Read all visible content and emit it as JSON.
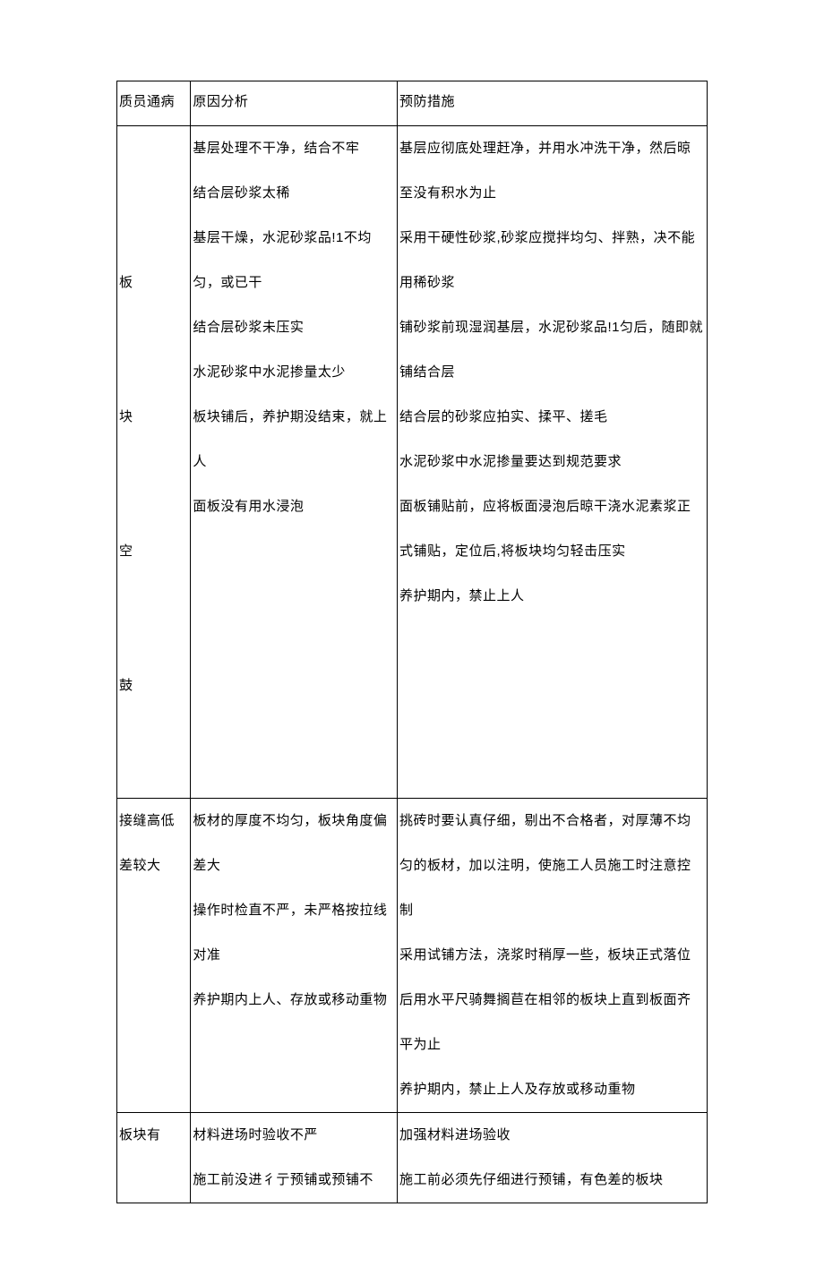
{
  "table": {
    "header": {
      "col1": "质员通病",
      "col2": "原因分析",
      "col3": "预防措施"
    },
    "rows": [
      {
        "col1_lines": [
          "板",
          "块",
          "空",
          "鼓"
        ],
        "col2": "基层处理不干净，结合不牢\n结合层砂浆太稀\n基层干燥，水泥砂浆品!1不均匀，或已干\n结合层砂浆未压实\n水泥砂浆中水泥掺量太少\n板块铺后，养护期没结束，就上人\n面板没有用水浸泡",
        "col3": "基层应彻底处理赶净，并用水冲洗干净，然后晾至没有积水为止\n采用干硬性砂浆,砂浆应搅拌均匀、拌熟，决不能用稀砂浆\n铺砂浆前现湿润基层，水泥砂浆品!1匀后，随即就铺结合层\n结合层的砂浆应拍实、揉平、搓毛\n水泥砂浆中水泥掺量要达到规范要求\n面板铺贴前，应将板面浸泡后晾干浇水泥素浆正式铺贴，定位后,将板块均匀轻击压实\n养护期内，禁止上人"
      },
      {
        "col1": "接缝高低差较大",
        "col2": "板材的厚度不均匀，板块角度偏差大\n操作时检直不严，未严格按拉线对准\n养护期内上人、存放或移动重物",
        "col3": "挑砖时要认真仔细，剔出不合格者，对厚薄不均匀的板材，加以注明，使施工人员施工时注意控制\n采用试铺方法，浇浆时稍厚一些，板块正式落位后用水平尺骑舞搁苣在相邻的板块上直到板面齐平为止\n养护期内，禁止上人及存放或移动重物"
      },
      {
        "col1": "板块有",
        "col2": "材料进场时验收不严\n施工前没进彳亍预铺或预铺不",
        "col3": "加强材料进场验收\n施工前必须先仔细进行预铺，有色差的板块"
      }
    ],
    "styling": {
      "font_family": "SimSun",
      "font_size": 15,
      "text_color": "#000000",
      "border_color": "#000000",
      "background_color": "#ffffff",
      "line_height": 50,
      "col_widths_pct": [
        12.5,
        35,
        52.5
      ]
    }
  }
}
